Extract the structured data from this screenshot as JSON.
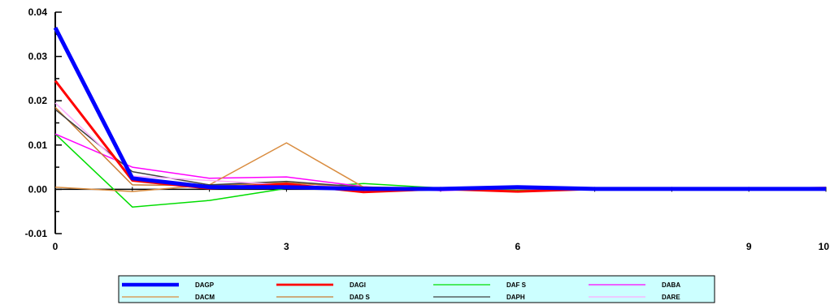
{
  "chart_data": {
    "type": "line",
    "x": [
      0,
      1,
      2,
      3,
      4,
      5,
      6,
      7,
      8,
      9,
      10
    ],
    "xticks": [
      "0",
      "3",
      "6",
      "9",
      "10"
    ],
    "yticks": [
      "0.04",
      "0.03",
      "0.02",
      "0.01",
      "0.00",
      "-0.01"
    ],
    "xlim": [
      0,
      10
    ],
    "ylim": [
      -0.01,
      0.04
    ],
    "grid": false,
    "legend_position": "bottom",
    "series": [
      {
        "name": "DAGP",
        "color": "#0000ff",
        "width": 5,
        "values": [
          0.0365,
          0.0025,
          0.0005,
          0.0005,
          0.0001,
          0.0001,
          0.0005,
          0.0001,
          0.0001,
          0.0001,
          0.0001
        ]
      },
      {
        "name": "DAGI",
        "color": "#ff0000",
        "width": 3,
        "values": [
          0.0245,
          0.002,
          0.0002,
          0.0012,
          -0.0006,
          0.0001,
          -0.0005,
          0.0001,
          0.0001,
          0.0001,
          0.0003
        ]
      },
      {
        "name": "DAFS",
        "color": "#00dd00",
        "width": 1.5,
        "values": [
          0.0125,
          -0.004,
          -0.0025,
          0.0002,
          0.0013,
          0.0003,
          -0.0001,
          0.0001,
          0.0,
          0.0,
          0.0
        ]
      },
      {
        "name": "DABA",
        "color": "#ff00ff",
        "width": 1.5,
        "values": [
          0.0125,
          0.005,
          0.0025,
          0.0028,
          0.0006,
          -0.0003,
          0.0002,
          0.0001,
          0.0,
          0.0,
          0.0
        ]
      },
      {
        "name": "DACM",
        "color": "#d98c3f",
        "width": 1.5,
        "values": [
          0.0005,
          -0.0005,
          0.001,
          0.0105,
          0.0005,
          0.0002,
          0.0001,
          0.0,
          0.0,
          0.0,
          0.0
        ]
      },
      {
        "name": "DADS",
        "color": "#c87a30",
        "width": 1.5,
        "values": [
          0.0185,
          0.001,
          0.0008,
          0.0015,
          0.0004,
          0.0002,
          0.0001,
          0.0,
          0.0,
          0.0,
          0.0
        ]
      },
      {
        "name": "DAPH",
        "color": "#404040",
        "width": 1.5,
        "values": [
          0.018,
          0.004,
          0.001,
          0.0018,
          0.0005,
          0.0003,
          0.0001,
          0.0,
          0.0,
          0.0,
          0.0
        ]
      },
      {
        "name": "DARE",
        "color": "#ffaaff",
        "width": 1.5,
        "values": [
          0.0195,
          0.003,
          0.002,
          0.001,
          0.0004,
          0.0002,
          0.0001,
          0.0,
          0.0,
          0.0,
          0.0
        ]
      }
    ],
    "legend_labels": [
      "DAGP",
      "DAGI",
      "DAF S",
      "DABA",
      "DACM",
      "DAD S",
      "DAPH",
      "DARE"
    ]
  }
}
